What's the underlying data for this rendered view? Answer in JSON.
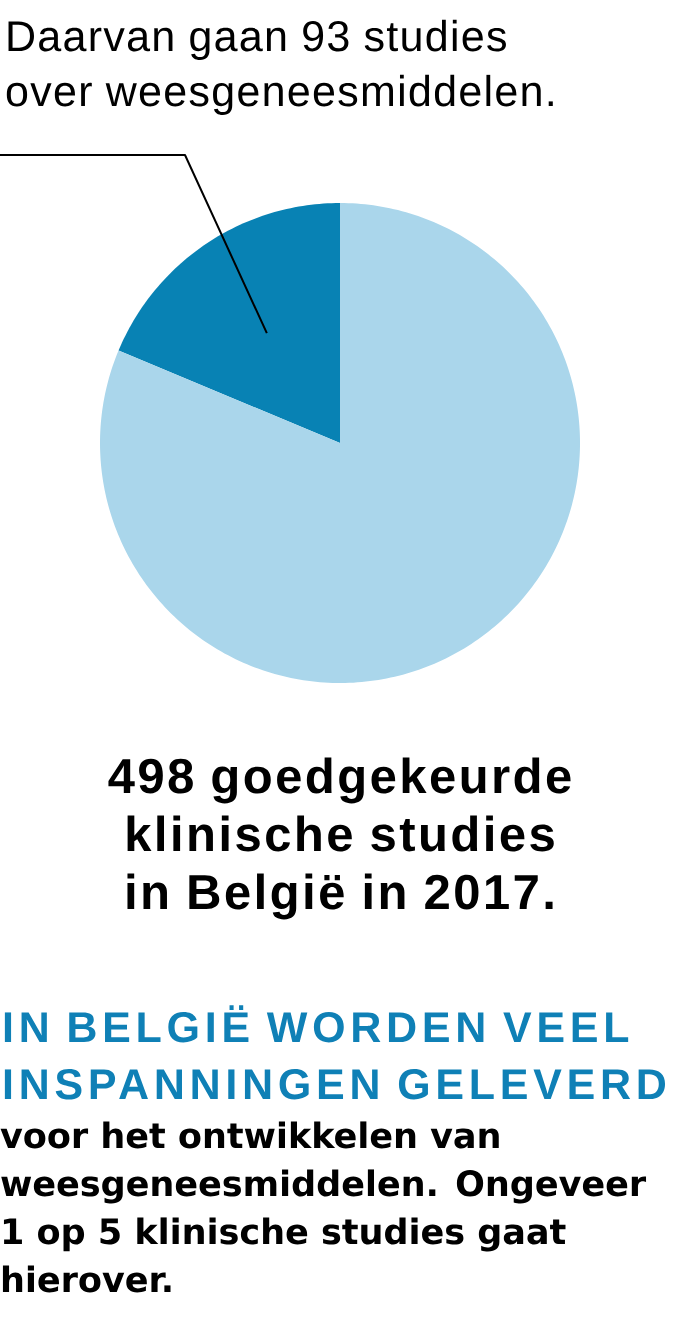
{
  "chart_data": {
    "type": "pie",
    "categories": [
      null,
      null
    ],
    "values": [
      18.7,
      81.3
    ],
    "colors": [
      "#0882b4",
      "#aad6eb"
    ],
    "title": "498 goedgekeurde klinische studies in België in 2017.",
    "annotations": [
      "Daarvan gaan 93 studies over weesgeneesmiddelen.",
      "IN BELGIË WORDEN VEEL INSPANNINGEN GELEVERD",
      "voor het ontwikkelen van weesgeneesmiddelen. Ongeveer 1 op 5 klinische studies gaat hierover."
    ]
  }
}
